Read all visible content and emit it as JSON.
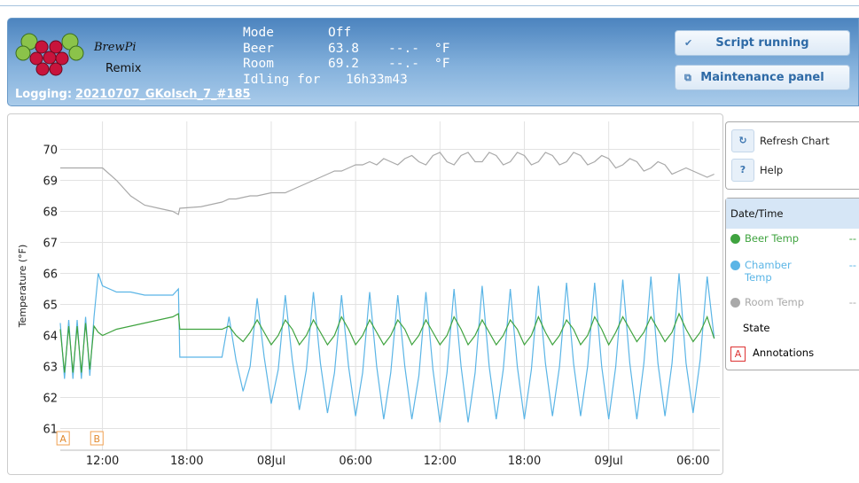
{
  "header": {
    "logo": {
      "line1": "BrewPi",
      "line2": "Remix"
    },
    "status": [
      [
        "Mode",
        "Off"
      ],
      [
        "Beer",
        "63.8",
        "--.-",
        "°F"
      ],
      [
        "Room",
        "69.2",
        "--.-",
        "°F"
      ],
      [
        "Idling for",
        "16h33m43"
      ]
    ],
    "logging_label": "Logging:",
    "logging_file": "20210707_GKolsch_7_#185",
    "buttons": [
      "Script running",
      "Maintenance panel"
    ]
  },
  "side_buttons": [
    "Refresh Chart",
    "Help"
  ],
  "legend_panel": {
    "header": "Date/Time",
    "extra": [
      "State",
      "Annotations"
    ],
    "annotation_icon": "A"
  },
  "chart_data": {
    "type": "line",
    "y_label": "Temperature (°F)",
    "x": [
      9.0,
      9.3,
      9.6,
      9.9,
      10.2,
      10.5,
      10.8,
      11.1,
      11.4,
      11.7,
      12,
      13,
      14,
      15,
      16,
      17,
      17.4,
      17.5,
      19,
      20.5,
      21.0,
      21.5,
      22.0,
      22.5,
      23.0,
      23.5,
      24.0,
      24.5,
      25.0,
      25.5,
      26.0,
      26.5,
      27.0,
      27.5,
      28.0,
      28.5,
      29.0,
      29.5,
      30.0,
      30.5,
      31.0,
      31.5,
      32.0,
      32.5,
      33.0,
      33.5,
      34.0,
      34.5,
      35.0,
      35.5,
      36.0,
      36.5,
      37.0,
      37.5,
      38.0,
      38.5,
      39.0,
      39.5,
      40.0,
      40.5,
      41.0,
      41.5,
      42.0,
      42.5,
      43.0,
      43.5,
      44.0,
      44.5,
      45.0,
      45.5,
      46.0,
      46.5,
      47.0,
      47.5,
      48.0,
      48.5,
      49.0,
      49.5,
      50.0,
      50.5,
      51.0,
      51.5,
      52.0,
      52.5,
      53.0,
      53.5,
      54.0,
      54.5,
      55.0,
      55.5
    ],
    "series": [
      {
        "name": "Beer Temp",
        "color": "#3fa33f",
        "legend_value": "--",
        "values": [
          64.2,
          62.8,
          64.3,
          62.8,
          64.3,
          62.8,
          64.4,
          62.9,
          64.3,
          64.1,
          64.0,
          64.2,
          64.3,
          64.4,
          64.5,
          64.6,
          64.7,
          64.2,
          64.2,
          64.2,
          64.3,
          64.0,
          63.8,
          64.1,
          64.5,
          64.1,
          63.7,
          64.0,
          64.5,
          64.2,
          63.7,
          64.0,
          64.5,
          64.1,
          63.7,
          64.0,
          64.6,
          64.2,
          63.7,
          64.0,
          64.5,
          64.1,
          63.7,
          64.0,
          64.5,
          64.2,
          63.7,
          64.0,
          64.5,
          64.1,
          63.7,
          64.0,
          64.6,
          64.2,
          63.7,
          64.0,
          64.5,
          64.1,
          63.7,
          64.0,
          64.5,
          64.2,
          63.7,
          64.0,
          64.6,
          64.1,
          63.7,
          64.0,
          64.5,
          64.2,
          63.7,
          64.0,
          64.6,
          64.2,
          63.7,
          64.1,
          64.6,
          64.2,
          63.8,
          64.1,
          64.6,
          64.2,
          63.8,
          64.1,
          64.7,
          64.2,
          63.8,
          64.1,
          64.6,
          63.9
        ]
      },
      {
        "name": "Chamber Temp",
        "color": "#5bb5e6",
        "legend_value": "--",
        "values": [
          64.4,
          62.6,
          64.5,
          62.6,
          64.5,
          62.6,
          64.6,
          62.7,
          64.6,
          66.0,
          65.6,
          65.4,
          65.4,
          65.3,
          65.3,
          65.3,
          65.5,
          63.3,
          63.3,
          63.3,
          64.6,
          63.2,
          62.2,
          63.0,
          65.2,
          63.3,
          61.8,
          62.9,
          65.3,
          63.2,
          61.6,
          62.9,
          65.4,
          63.1,
          61.5,
          62.8,
          65.3,
          63.0,
          61.4,
          62.8,
          65.4,
          63.0,
          61.3,
          62.8,
          65.3,
          63.0,
          61.3,
          62.7,
          65.4,
          62.9,
          61.2,
          62.8,
          65.5,
          63.0,
          61.2,
          62.8,
          65.6,
          63.0,
          61.3,
          62.9,
          65.5,
          63.0,
          61.3,
          62.9,
          65.6,
          63.1,
          61.4,
          63.0,
          65.7,
          63.1,
          61.4,
          63.0,
          65.7,
          63.0,
          61.3,
          63.0,
          65.8,
          63.1,
          61.3,
          63.1,
          65.9,
          63.1,
          61.4,
          63.1,
          66.0,
          63.1,
          61.5,
          63.2,
          65.9,
          63.9
        ]
      },
      {
        "name": "Room Temp",
        "color": "#a9a9a9",
        "legend_value": "--",
        "values": [
          69.4,
          69.4,
          69.4,
          69.4,
          69.4,
          69.4,
          69.4,
          69.4,
          69.4,
          69.4,
          69.4,
          69.0,
          68.5,
          68.2,
          68.1,
          68.0,
          67.9,
          68.1,
          68.15,
          68.3,
          68.4,
          68.4,
          68.45,
          68.5,
          68.5,
          68.55,
          68.6,
          68.6,
          68.6,
          68.7,
          68.8,
          68.9,
          69.0,
          69.1,
          69.2,
          69.3,
          69.3,
          69.4,
          69.5,
          69.5,
          69.6,
          69.5,
          69.7,
          69.6,
          69.5,
          69.7,
          69.8,
          69.6,
          69.5,
          69.8,
          69.9,
          69.6,
          69.5,
          69.8,
          69.9,
          69.6,
          69.6,
          69.9,
          69.8,
          69.5,
          69.6,
          69.9,
          69.8,
          69.5,
          69.6,
          69.9,
          69.8,
          69.5,
          69.6,
          69.9,
          69.8,
          69.5,
          69.6,
          69.8,
          69.7,
          69.4,
          69.5,
          69.7,
          69.6,
          69.3,
          69.4,
          69.6,
          69.5,
          69.2,
          69.3,
          69.4,
          69.3,
          69.2,
          69.1,
          69.2
        ]
      }
    ],
    "annotations": [
      {
        "label": "A",
        "x": 9.2
      },
      {
        "label": "B",
        "x": 11.6
      }
    ],
    "xlim": [
      9,
      55.9
    ],
    "ylim": [
      60.3,
      70.9
    ],
    "xticks": [
      {
        "value": 12,
        "label": "12:00"
      },
      {
        "value": 18,
        "label": "18:00"
      },
      {
        "value": 24,
        "label": "08Jul"
      },
      {
        "value": 30,
        "label": "06:00"
      },
      {
        "value": 36,
        "label": "12:00"
      },
      {
        "value": 42,
        "label": "18:00"
      },
      {
        "value": 48,
        "label": "09Jul"
      },
      {
        "value": 54,
        "label": "06:00"
      }
    ],
    "yticks": [
      61,
      62,
      63,
      64,
      65,
      66,
      67,
      68,
      69,
      70
    ],
    "grid": true
  }
}
